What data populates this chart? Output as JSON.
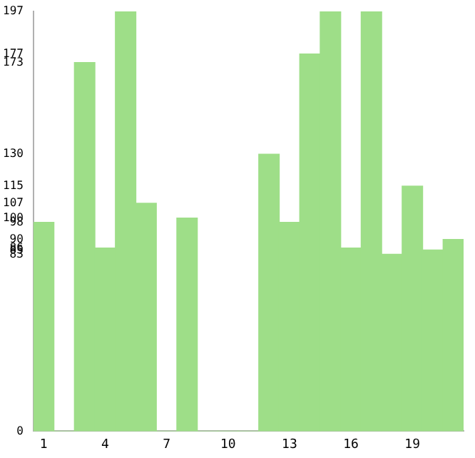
{
  "chart_data": {
    "type": "bar",
    "categories": [
      "1",
      null,
      null,
      "4",
      null,
      null,
      "7",
      null,
      null,
      "10",
      null,
      null,
      "13",
      null,
      null,
      "16",
      null,
      null,
      "19",
      null,
      null
    ],
    "values": [
      98,
      0,
      173,
      86,
      197,
      107,
      0,
      100,
      0,
      0,
      0,
      130,
      98,
      177,
      197,
      86,
      197,
      83,
      115,
      85,
      90
    ],
    "color": "#9ede88",
    "ylim": [
      0,
      197
    ],
    "yticks": [
      0,
      83,
      85,
      86,
      90,
      98,
      100,
      107,
      115,
      130,
      173,
      177,
      197
    ],
    "grid": false,
    "legend": false
  }
}
